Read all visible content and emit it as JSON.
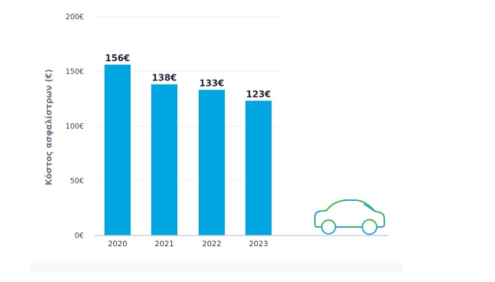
{
  "chart_data": {
    "type": "bar",
    "categories": [
      "2020",
      "2021",
      "2022",
      "2023"
    ],
    "values": [
      156,
      138,
      133,
      123
    ],
    "data_labels": [
      "156€",
      "138€",
      "133€",
      "123€"
    ],
    "title": "",
    "xlabel": "",
    "ylabel": "Κόστος ασφαλίστρων (€)",
    "ylim": [
      0,
      200
    ],
    "yticks": [
      0,
      50,
      100,
      150,
      200
    ],
    "ytick_labels": [
      "0€",
      "50€",
      "100€",
      "150€",
      "200€"
    ],
    "grid": true,
    "legend": "none",
    "bar_color": "#00a6e0",
    "decoration": "car-icon",
    "car_colors": [
      "#39b54a",
      "#1ea1e0"
    ]
  }
}
